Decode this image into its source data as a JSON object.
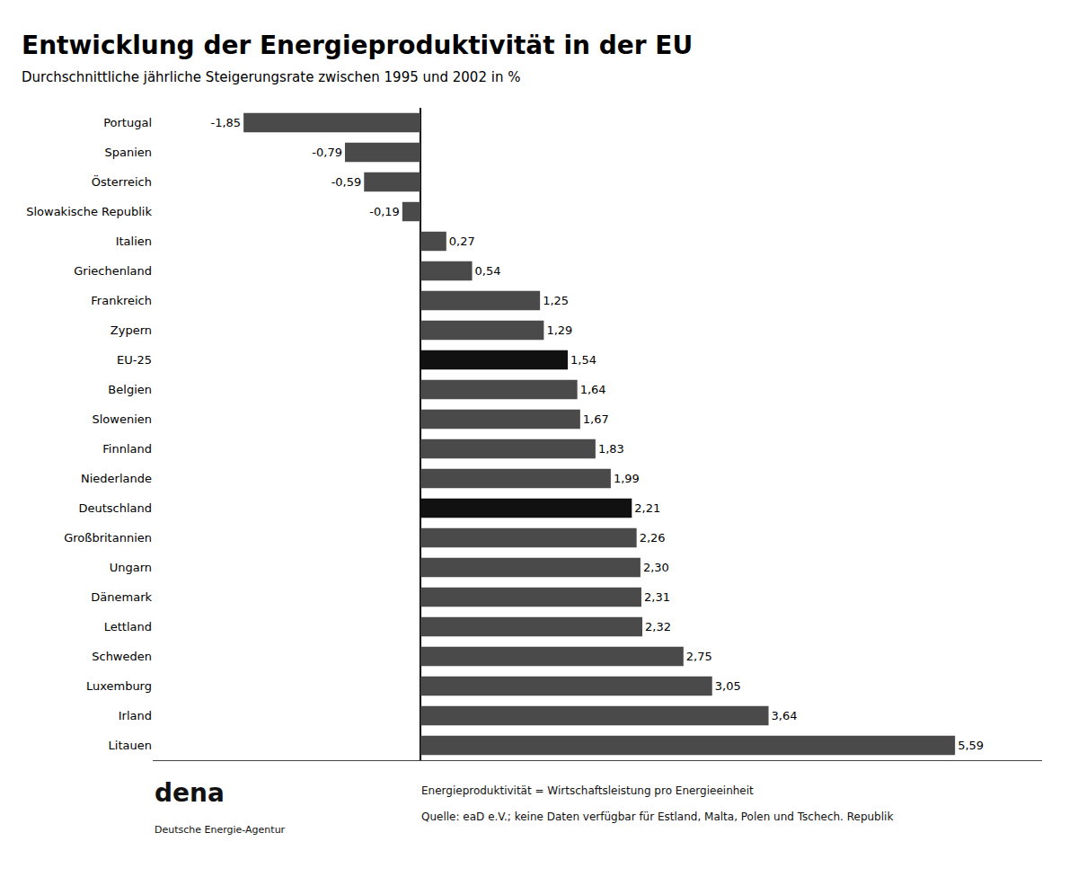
{
  "chart_data": {
    "type": "bar",
    "orientation": "horizontal",
    "title": "Entwicklung der Energieproduktivität in der EU",
    "subtitle": "Durchschnittliche jährliche Steigerungsrate zwischen 1995 und 2002 in %",
    "categories": [
      "Portugal",
      "Spanien",
      "Österreich",
      "Slowakische Republik",
      "Italien",
      "Griechenland",
      "Frankreich",
      "Zypern",
      "EU-25",
      "Belgien",
      "Slowenien",
      "Finnland",
      "Niederlande",
      "Deutschland",
      "Großbritannien",
      "Ungarn",
      "Dänemark",
      "Lettland",
      "Schweden",
      "Luxemburg",
      "Irland",
      "Litauen"
    ],
    "values": [
      -1.85,
      -0.79,
      -0.59,
      -0.19,
      0.27,
      0.54,
      1.25,
      1.29,
      1.54,
      1.64,
      1.67,
      1.83,
      1.99,
      2.21,
      2.26,
      2.3,
      2.31,
      2.32,
      2.75,
      3.05,
      3.64,
      5.59
    ],
    "value_labels": [
      "-1,85",
      "-0,79",
      "-0,59",
      "-0,19",
      "0,27",
      "0,54",
      "1,25",
      "1,29",
      "1,54",
      "1,64",
      "1,67",
      "1,83",
      "1,99",
      "2,21",
      "2,26",
      "2,30",
      "2,31",
      "2,32",
      "2,75",
      "3,05",
      "3,64",
      "5,59"
    ],
    "data_labels": true,
    "colors": [
      "#4a4a4a",
      "#4a4a4a",
      "#4a4a4a",
      "#4a4a4a",
      "#4a4a4a",
      "#4a4a4a",
      "#4a4a4a",
      "#4a4a4a",
      "#111111",
      "#4a4a4a",
      "#4a4a4a",
      "#4a4a4a",
      "#4a4a4a",
      "#111111",
      "#4a4a4a",
      "#4a4a4a",
      "#4a4a4a",
      "#4a4a4a",
      "#4a4a4a",
      "#4a4a4a",
      "#4a4a4a",
      "#4a4a4a"
    ],
    "xlim": [
      -2.8,
      6.5
    ],
    "tick_labels": "y",
    "grid": false,
    "annotations": [
      "Energieproduktivität = Wirtschaftsleistung pro Energieeinheit",
      "Quelle: eaD e.V.; keine Daten verfügbar für Estland, Malta, Polen und Tschech. Republik",
      "dena",
      "Deutsche Energie-Agentur"
    ]
  }
}
